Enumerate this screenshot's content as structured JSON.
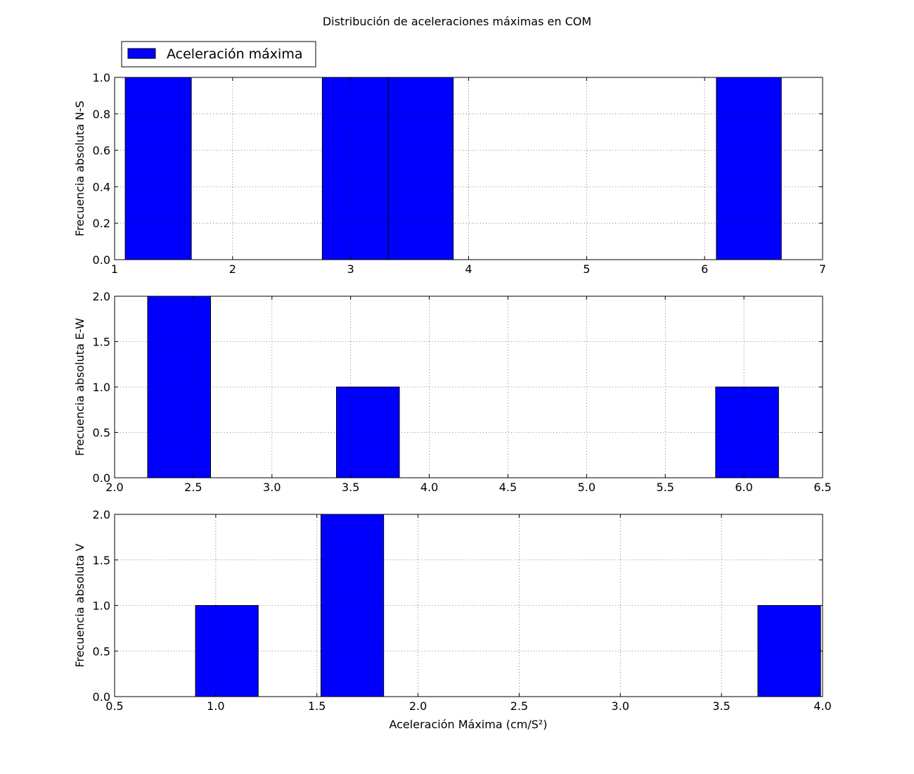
{
  "chart_data": {
    "type": "bar",
    "title": "Distribución de aceleraciones máximas en COM",
    "legend": {
      "label": "Aceleración máxima",
      "placement": "upper-left, above plots",
      "color": "#0000ff"
    },
    "grid": true,
    "bar_color": "#0000ff",
    "edge_color": "#000000",
    "xlabel": "Aceleración Máxima (cm/S²)",
    "subplots": [
      {
        "ylabel": "Frecuencia absoluta N-S",
        "xlim": [
          1,
          7
        ],
        "ylim": [
          0,
          1.0
        ],
        "xticks": [
          "1",
          "2",
          "3",
          "4",
          "5",
          "6",
          "7"
        ],
        "yticks": [
          "0.0",
          "0.2",
          "0.4",
          "0.6",
          "0.8",
          "1.0"
        ],
        "bins": [
          {
            "x0": 1.09,
            "x1": 1.65,
            "count": 1
          },
          {
            "x0": 2.76,
            "x1": 3.32,
            "count": 1
          },
          {
            "x0": 3.32,
            "x1": 3.87,
            "count": 1
          },
          {
            "x0": 6.1,
            "x1": 6.65,
            "count": 1
          }
        ]
      },
      {
        "ylabel": "Frecuencia absoluta E-W",
        "xlim": [
          2.0,
          6.5
        ],
        "ylim": [
          0,
          2.0
        ],
        "xticks": [
          "2.0",
          "2.5",
          "3.0",
          "3.5",
          "4.0",
          "4.5",
          "5.0",
          "5.5",
          "6.0",
          "6.5"
        ],
        "yticks": [
          "0.0",
          "0.5",
          "1.0",
          "1.5",
          "2.0"
        ],
        "bins": [
          {
            "x0": 2.21,
            "x1": 2.61,
            "count": 2
          },
          {
            "x0": 3.41,
            "x1": 3.81,
            "count": 1
          },
          {
            "x0": 5.82,
            "x1": 6.22,
            "count": 1
          }
        ]
      },
      {
        "ylabel": "Frecuencia absoluta V",
        "xlim": [
          0.5,
          4.0
        ],
        "ylim": [
          0,
          2.0
        ],
        "xticks": [
          "0.5",
          "1.0",
          "1.5",
          "2.0",
          "2.5",
          "3.0",
          "3.5",
          "4.0"
        ],
        "yticks": [
          "0.0",
          "0.5",
          "1.0",
          "1.5",
          "2.0"
        ],
        "bins": [
          {
            "x0": 0.9,
            "x1": 1.21,
            "count": 1
          },
          {
            "x0": 1.52,
            "x1": 1.83,
            "count": 2
          },
          {
            "x0": 3.68,
            "x1": 3.99,
            "count": 1
          }
        ]
      }
    ]
  }
}
